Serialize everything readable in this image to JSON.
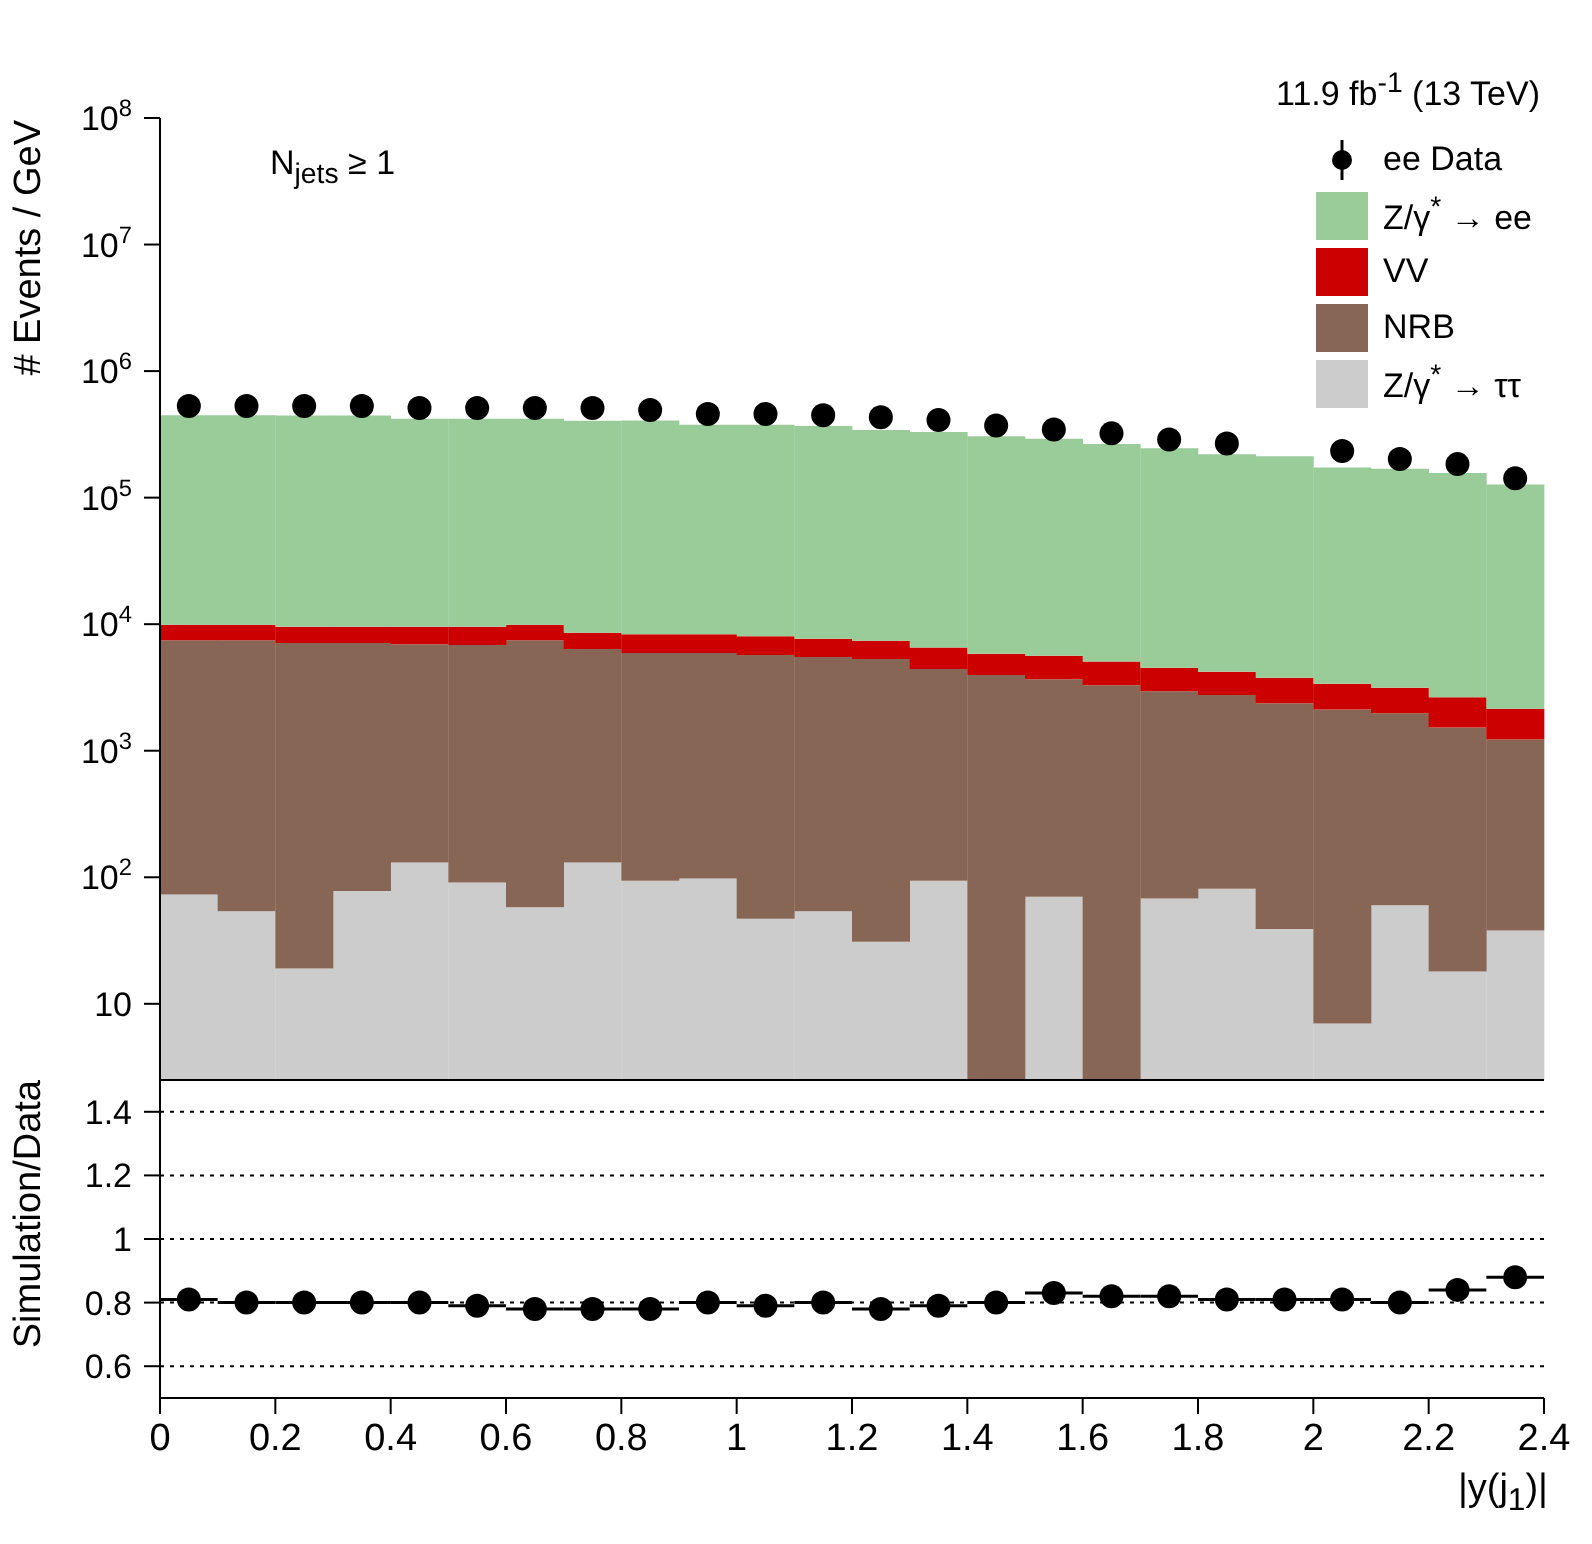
{
  "chart_data": [
    {
      "type": "bar",
      "ylabel": "# Events / GeV",
      "log": "y",
      "stacked": true,
      "legend": "top right",
      "marker": "circle",
      "tick_labels": "y",
      "categories": [
        null,
        null,
        null,
        null,
        null,
        null,
        null,
        null,
        null,
        null,
        null,
        null,
        null,
        null,
        null,
        null,
        null,
        null,
        null,
        null,
        null,
        null,
        null,
        null
      ],
      "annotations": [
        "11.9 fb$^{-1}$ (13 TeV)",
        "N$_{jets}$ ≥ 1"
      ],
      "ylim": [
        2.5,
        100000000
      ],
      "yticks": [
        10,
        {
          "value": 100,
          "label": "10$^{2}$"
        },
        {
          "value": 1000,
          "label": "10$^{3}$"
        },
        {
          "value": 10000,
          "label": "10$^{4}$"
        },
        {
          "value": 100000,
          "label": "10$^{5}$"
        },
        {
          "value": 1000000,
          "label": "10$^{6}$"
        },
        {
          "value": 10000000,
          "label": "10$^{7}$"
        },
        {
          "value": 100000000,
          "label": "10$^{8}$"
        }
      ],
      "series": [
        {
          "name": "Z/γ$^{*}$ → ττ",
          "color": "#cccccc",
          "values": [
            73,
            54,
            19,
            78,
            131,
            91,
            58,
            131,
            94,
            98,
            47,
            54,
            31,
            94,
            null,
            70,
            null,
            68,
            81,
            39,
            7,
            60,
            18,
            38
          ]
        },
        {
          "name": "NRB",
          "color": "#886655",
          "values": [
            7380,
            7400,
            7080,
            7020,
            6800,
            6760,
            7390,
            6240,
            5830,
            5820,
            5650,
            5450,
            5270,
            4320,
            3960,
            3600,
            3290,
            2880,
            2670,
            2330,
            2110,
            1920,
            1510,
            1190
          ]
        },
        {
          "name": "VV",
          "color": "#cc0000",
          "values": [
            2440,
            2440,
            2430,
            2430,
            2600,
            2680,
            2440,
            2170,
            2420,
            2420,
            2330,
            2150,
            2080,
            2120,
            1890,
            1970,
            1770,
            1580,
            1460,
            1400,
            1260,
            1160,
            1120,
            920
          ]
        },
        {
          "name": "Z/γ$^{*}$ → ee",
          "color": "#99cc99",
          "values": [
            437000,
            437000,
            437000,
            437000,
            411000,
            411000,
            411000,
            397000,
            398000,
            369000,
            369000,
            360000,
            335000,
            323000,
            300000,
            286000,
            260000,
            241000,
            216000,
            209000,
            170000,
            166000,
            154000,
            125000
          ]
        },
        {
          "name": "ee Data",
          "type": "scatter",
          "color": "#000000",
          "values": [
            530000,
            530000,
            530000,
            530000,
            510000,
            510000,
            510000,
            510000,
            493000,
            458000,
            458000,
            447000,
            431000,
            410000,
            372000,
            346000,
            322000,
            288000,
            268000,
            null,
            234000,
            202000,
            184000,
            142000
          ]
        }
      ]
    },
    {
      "type": "scatter",
      "xlabel": "|y(j$_{1}$)|",
      "ylabel": "Simulation/Data",
      "marker": "circle",
      "grid": "y",
      "xlim": [
        0,
        2.4
      ],
      "xticks": [
        0,
        0.2,
        0.4,
        0.6,
        0.8,
        1,
        1.2,
        1.4,
        1.6,
        1.8,
        2,
        2.2,
        2.4
      ],
      "ylim": [
        0.5,
        1.5
      ],
      "yticks": [
        0.6,
        0.8,
        1,
        1.2,
        1.4
      ],
      "x": [
        0.05,
        0.15,
        0.25,
        0.35,
        0.45,
        0.55,
        0.65,
        0.75,
        0.85,
        0.95,
        1.05,
        1.15,
        1.25,
        1.35,
        1.45,
        1.55,
        1.65,
        1.75,
        1.85,
        1.95,
        2.05,
        2.15,
        2.25,
        2.35
      ],
      "xerrors": [
        0.05,
        0.05,
        0.05,
        0.05,
        0.05,
        0.05,
        0.05,
        0.05,
        0.05,
        0.05,
        0.05,
        0.05,
        0.05,
        0.05,
        0.05,
        0.05,
        0.05,
        0.05,
        0.05,
        0.05,
        0.05,
        0.05,
        0.05,
        0.05
      ],
      "values": [
        0.81,
        0.8,
        0.8,
        0.8,
        0.8,
        0.79,
        0.78,
        0.78,
        0.78,
        0.8,
        0.79,
        0.8,
        0.78,
        0.79,
        0.8,
        0.83,
        0.82,
        0.82,
        0.81,
        0.81,
        0.81,
        0.8,
        0.84,
        0.88
      ],
      "color": "#000000"
    }
  ]
}
